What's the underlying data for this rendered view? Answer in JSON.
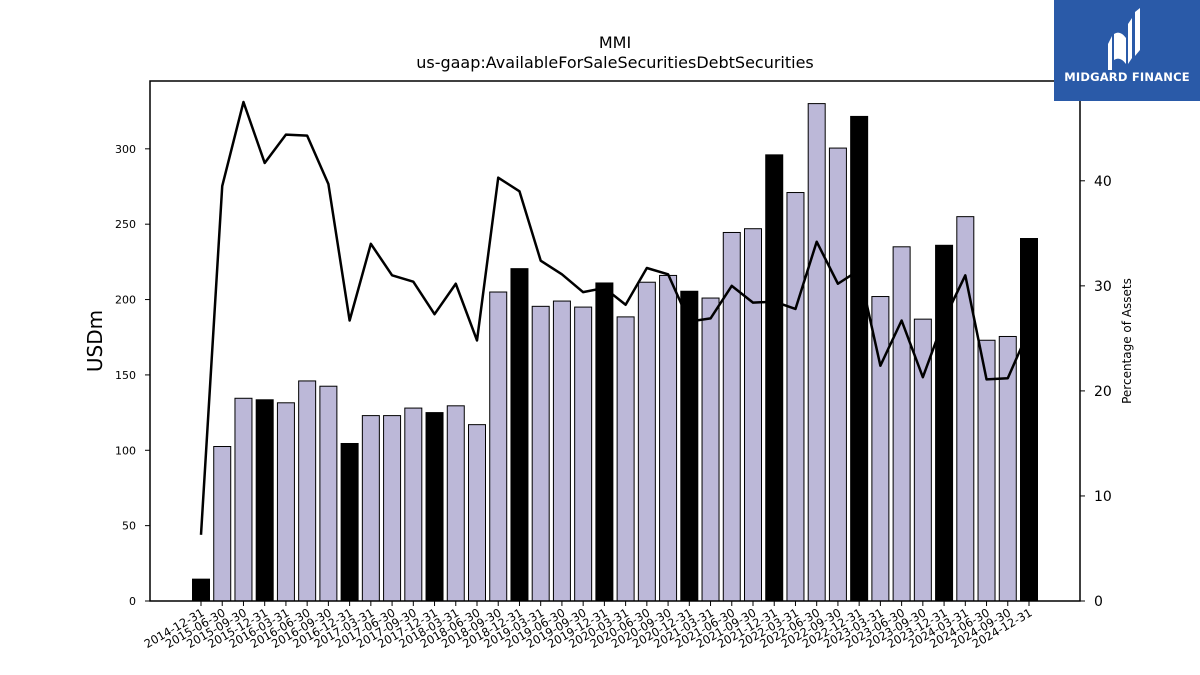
{
  "chart_data": {
    "type": "bar",
    "title": "MMI",
    "subtitle": "us-gaap:AvailableForSaleSecuritiesDebtSecurities",
    "ylabel": "USDm",
    "y2label": "Percentage of Assets",
    "ylim": [
      0,
      345
    ],
    "y2lim": [
      0,
      49.5
    ],
    "yticks": [
      0,
      50,
      100,
      150,
      200,
      250,
      300
    ],
    "y2ticks": [
      0,
      10,
      20,
      30,
      40
    ],
    "categories": [
      "2014-12-31",
      "2015-06-30",
      "2015-09-30",
      "2015-12-31",
      "2016-03-31",
      "2016-06-30",
      "2016-09-30",
      "2016-12-31",
      "2017-03-31",
      "2017-06-30",
      "2017-09-30",
      "2017-12-31",
      "2018-03-31",
      "2018-06-30",
      "2018-09-30",
      "2018-12-31",
      "2019-03-31",
      "2019-06-30",
      "2019-09-30",
      "2019-12-31",
      "2020-03-31",
      "2020-06-30",
      "2020-09-30",
      "2020-12-31",
      "2021-03-31",
      "2021-06-30",
      "2021-09-30",
      "2021-12-31",
      "2022-03-31",
      "2022-06-30",
      "2022-09-30",
      "2022-12-31",
      "2023-03-31",
      "2023-06-30",
      "2023-09-30",
      "2023-12-31",
      "2024-03-31",
      "2024-06-30",
      "2024-09-30",
      "2024-12-31"
    ],
    "series": [
      {
        "kind": "bar",
        "axis": "left",
        "values": [
          14.5,
          102.5,
          134.5,
          133.5,
          131.5,
          146,
          142.5,
          104.5,
          123,
          123,
          128,
          125,
          129.5,
          117,
          205,
          220.5,
          195.5,
          199,
          195,
          211,
          188.5,
          211.5,
          216,
          205.5,
          201,
          244.5,
          247,
          296,
          271,
          330,
          300.5,
          321.5,
          202,
          235,
          187,
          236,
          255,
          173,
          175.5,
          240.5
        ],
        "highlight": [
          true,
          false,
          false,
          true,
          false,
          false,
          false,
          true,
          false,
          false,
          false,
          true,
          false,
          false,
          false,
          true,
          false,
          false,
          false,
          true,
          false,
          false,
          false,
          true,
          false,
          false,
          false,
          true,
          false,
          false,
          false,
          true,
          false,
          false,
          false,
          true,
          false,
          false,
          false,
          true
        ]
      },
      {
        "kind": "line",
        "axis": "right",
        "values": [
          6.3,
          39.5,
          47.5,
          41.7,
          44.4,
          44.3,
          39.7,
          26.7,
          34,
          31,
          30.4,
          27.3,
          30.2,
          24.8,
          40.3,
          39,
          32.4,
          31.1,
          29.4,
          29.8,
          28.2,
          31.7,
          31.1,
          26.6,
          26.9,
          30,
          28.4,
          28.5,
          27.8,
          34.2,
          30.2,
          31.5,
          22.4,
          26.7,
          21.3,
          26.8,
          31,
          21.1,
          21.2,
          25.8
        ]
      }
    ],
    "colors": {
      "bar": "#bcb8d8",
      "bar_highlight": "#000000",
      "line": "#000000"
    }
  },
  "logo": {
    "text": "MIDGARD FINANCE",
    "color": "#2a5aa8"
  }
}
